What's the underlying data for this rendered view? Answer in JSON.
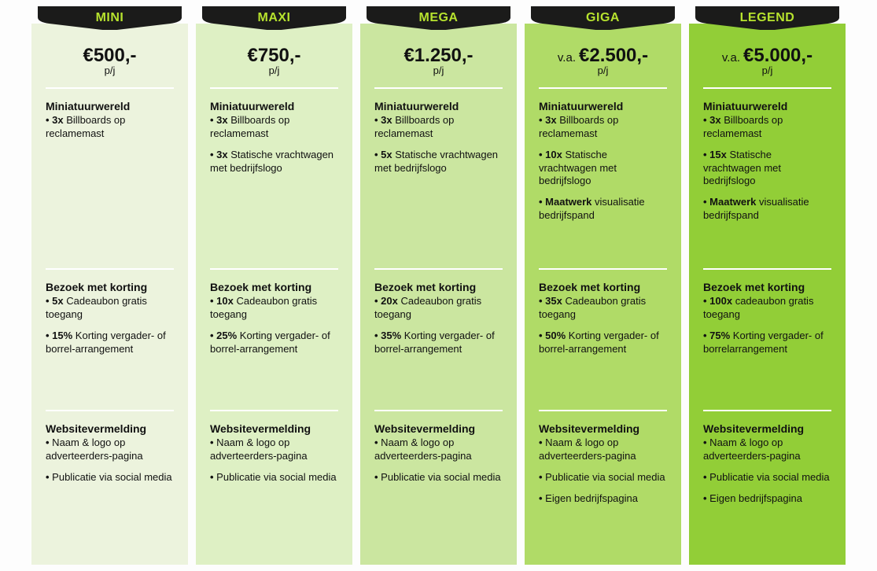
{
  "global": {
    "unit_label": "p/j",
    "tab_text_color": "#b7e32e",
    "tab_bg_color": "#1b1b1a",
    "column_bg_colors": [
      "#ecf3dd",
      "#def0c4",
      "#cbe6a0",
      "#b0db67",
      "#92ce37"
    ]
  },
  "columns": [
    {
      "name": "MINI",
      "price_prefix": "",
      "price": "€500,-",
      "sections": [
        {
          "title": "Miniatuurwereld",
          "items": [
            {
              "bold": "• 3x",
              "rest": " Billboards op reclamemast"
            }
          ]
        },
        {
          "title": "Bezoek met korting",
          "items": [
            {
              "bold": "• 5x",
              "rest": " Cadeaubon gratis toegang"
            },
            {
              "bold": "• 15%",
              "rest": " Korting vergader- of borrel-arrangement"
            }
          ]
        },
        {
          "title": "Websitevermelding",
          "items": [
            {
              "bold": "•",
              "rest": " Naam & logo op adverteerders-pagina"
            },
            {
              "bold": "•",
              "rest": " Publicatie via social media"
            }
          ]
        }
      ]
    },
    {
      "name": "MAXI",
      "price_prefix": "",
      "price": "€750,-",
      "sections": [
        {
          "title": "Miniatuurwereld",
          "items": [
            {
              "bold": "• 3x",
              "rest": " Billboards op reclamemast"
            },
            {
              "bold": "• 3x",
              "rest": " Statische vrachtwagen met bedrijfslogo"
            }
          ]
        },
        {
          "title": "Bezoek met korting",
          "items": [
            {
              "bold": "• 10x",
              "rest": " Cadeaubon gratis toegang"
            },
            {
              "bold": "• 25%",
              "rest": " Korting vergader- of borrel-arrangement"
            }
          ]
        },
        {
          "title": "Websitevermelding",
          "items": [
            {
              "bold": "•",
              "rest": " Naam & logo op adverteerders-pagina"
            },
            {
              "bold": "•",
              "rest": " Publicatie via social media"
            }
          ]
        }
      ]
    },
    {
      "name": "MEGA",
      "price_prefix": "",
      "price": "€1.250,-",
      "sections": [
        {
          "title": "Miniatuurwereld",
          "items": [
            {
              "bold": "• 3x",
              "rest": " Billboards op reclamemast"
            },
            {
              "bold": "• 5x",
              "rest": " Statische vrachtwagen met bedrijfslogo"
            }
          ]
        },
        {
          "title": "Bezoek met korting",
          "items": [
            {
              "bold": "• 20x",
              "rest": " Cadeaubon gratis toegang"
            },
            {
              "bold": "• 35%",
              "rest": " Korting vergader- of borrel-arrangement"
            }
          ]
        },
        {
          "title": "Websitevermelding",
          "items": [
            {
              "bold": "•",
              "rest": " Naam & logo op adverteerders-pagina"
            },
            {
              "bold": "•",
              "rest": " Publicatie via social media"
            }
          ]
        }
      ]
    },
    {
      "name": "GIGA",
      "price_prefix": "v.a.",
      "price": "€2.500,-",
      "sections": [
        {
          "title": "Miniatuurwereld",
          "items": [
            {
              "bold": "• 3x",
              "rest": " Billboards op reclamemast"
            },
            {
              "bold": "• 10x",
              "rest": " Statische vrachtwagen met bedrijfslogo"
            },
            {
              "bold": "• Maatwerk",
              "rest": " visualisatie bedrijfspand"
            }
          ]
        },
        {
          "title": "Bezoek met korting",
          "items": [
            {
              "bold": "• 35x",
              "rest": " Cadeaubon gratis toegang"
            },
            {
              "bold": "• 50%",
              "rest": " Korting vergader- of borrel-arrangement"
            }
          ]
        },
        {
          "title": "Websitevermelding",
          "items": [
            {
              "bold": "•",
              "rest": " Naam & logo op adverteerders-pagina"
            },
            {
              "bold": "•",
              "rest": " Publicatie via social media"
            },
            {
              "bold": "•",
              "rest": " Eigen bedrijfspagina"
            }
          ]
        }
      ]
    },
    {
      "name": "LEGEND",
      "price_prefix": "v.a.",
      "price": "€5.000,-",
      "sections": [
        {
          "title": "Miniatuurwereld",
          "items": [
            {
              "bold": "• 3x",
              "rest": " Billboards op reclamemast"
            },
            {
              "bold": "• 15x",
              "rest": " Statische vrachtwagen met bedrijfslogo"
            },
            {
              "bold": "• Maatwerk",
              "rest": " visualisatie bedrijfspand"
            }
          ]
        },
        {
          "title": "Bezoek met korting",
          "items": [
            {
              "bold": "• 100x",
              "rest": " cadeaubon gratis toegang"
            },
            {
              "bold": "• 75%",
              "rest": " Korting vergader- of borrelarrangement"
            }
          ]
        },
        {
          "title": "Websitevermelding",
          "items": [
            {
              "bold": "•",
              "rest": " Naam & logo op adverteerders-pagina"
            },
            {
              "bold": "•",
              "rest": " Publicatie via social media"
            },
            {
              "bold": "•",
              "rest": " Eigen bedrijfspagina"
            }
          ]
        }
      ]
    }
  ]
}
